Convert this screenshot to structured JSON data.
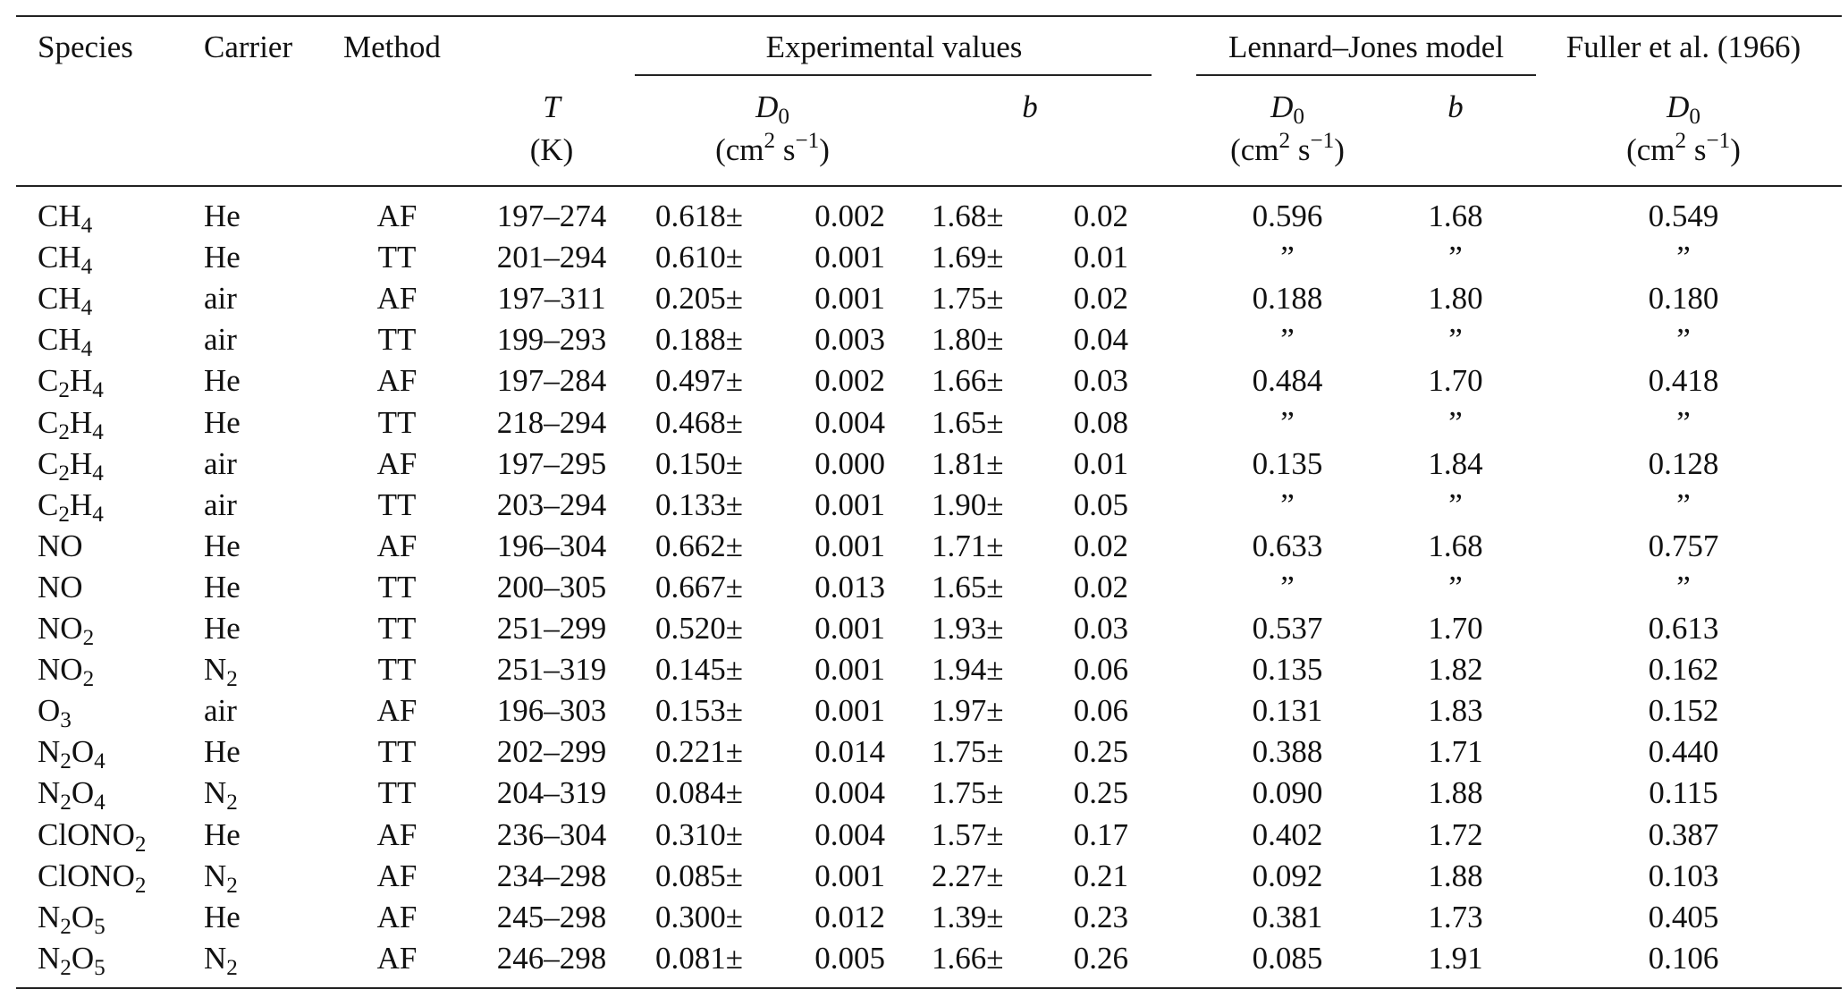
{
  "header": {
    "species": "Species",
    "carrier": "Carrier",
    "method": "Method",
    "experimental": "Experimental values",
    "lj_model": "Lennard–Jones model",
    "fuller": "Fuller et al. (1966)",
    "T": "T",
    "T_unit": "(K)",
    "D0_sym": "D",
    "D0_sub": "0",
    "b": "b",
    "unit_cm": "(cm",
    "unit_sq": "2",
    "unit_s": " s",
    "unit_exp": "−1",
    "unit_close": ")",
    "pm": "±"
  },
  "rows": [
    {
      "sp": "CH",
      "sps": "4",
      "sp2": "",
      "sp2s": "",
      "sp3": "",
      "sp3s": "",
      "car": "He",
      "cars": "",
      "method": "AF",
      "T": "197–274",
      "D0": "0.618",
      "D0e": "0.002",
      "b": "1.68",
      "be": "0.02",
      "ljD": "0.596",
      "ljb": "1.68",
      "fu": "0.549"
    },
    {
      "sp": "CH",
      "sps": "4",
      "sp2": "",
      "sp2s": "",
      "sp3": "",
      "sp3s": "",
      "car": "He",
      "cars": "",
      "method": "TT",
      "T": "201–294",
      "D0": "0.610",
      "D0e": "0.001",
      "b": "1.69",
      "be": "0.01",
      "ljD": "”",
      "ljb": "”",
      "fu": "”"
    },
    {
      "sp": "CH",
      "sps": "4",
      "sp2": "",
      "sp2s": "",
      "sp3": "",
      "sp3s": "",
      "car": "air",
      "cars": "",
      "method": "AF",
      "T": "197–311",
      "D0": "0.205",
      "D0e": "0.001",
      "b": "1.75",
      "be": "0.02",
      "ljD": "0.188",
      "ljb": "1.80",
      "fu": "0.180"
    },
    {
      "sp": "CH",
      "sps": "4",
      "sp2": "",
      "sp2s": "",
      "sp3": "",
      "sp3s": "",
      "car": "air",
      "cars": "",
      "method": "TT",
      "T": "199–293",
      "D0": "0.188",
      "D0e": "0.003",
      "b": "1.80",
      "be": "0.04",
      "ljD": "”",
      "ljb": "”",
      "fu": "”"
    },
    {
      "sp": "C",
      "sps": "2",
      "sp2": "H",
      "sp2s": "4",
      "sp3": "",
      "sp3s": "",
      "car": "He",
      "cars": "",
      "method": "AF",
      "T": "197–284",
      "D0": "0.497",
      "D0e": "0.002",
      "b": "1.66",
      "be": "0.03",
      "ljD": "0.484",
      "ljb": "1.70",
      "fu": "0.418"
    },
    {
      "sp": "C",
      "sps": "2",
      "sp2": "H",
      "sp2s": "4",
      "sp3": "",
      "sp3s": "",
      "car": "He",
      "cars": "",
      "method": "TT",
      "T": "218–294",
      "D0": "0.468",
      "D0e": "0.004",
      "b": "1.65",
      "be": "0.08",
      "ljD": "”",
      "ljb": "”",
      "fu": "”"
    },
    {
      "sp": "C",
      "sps": "2",
      "sp2": "H",
      "sp2s": "4",
      "sp3": "",
      "sp3s": "",
      "car": "air",
      "cars": "",
      "method": "AF",
      "T": "197–295",
      "D0": "0.150",
      "D0e": "0.000",
      "b": "1.81",
      "be": "0.01",
      "ljD": "0.135",
      "ljb": "1.84",
      "fu": "0.128"
    },
    {
      "sp": "C",
      "sps": "2",
      "sp2": "H",
      "sp2s": "4",
      "sp3": "",
      "sp3s": "",
      "car": "air",
      "cars": "",
      "method": "TT",
      "T": "203–294",
      "D0": "0.133",
      "D0e": "0.001",
      "b": "1.90",
      "be": "0.05",
      "ljD": "”",
      "ljb": "”",
      "fu": "”"
    },
    {
      "sp": "NO",
      "sps": "",
      "sp2": "",
      "sp2s": "",
      "sp3": "",
      "sp3s": "",
      "car": "He",
      "cars": "",
      "method": "AF",
      "T": "196–304",
      "D0": "0.662",
      "D0e": "0.001",
      "b": "1.71",
      "be": "0.02",
      "ljD": "0.633",
      "ljb": "1.68",
      "fu": "0.757"
    },
    {
      "sp": "NO",
      "sps": "",
      "sp2": "",
      "sp2s": "",
      "sp3": "",
      "sp3s": "",
      "car": "He",
      "cars": "",
      "method": "TT",
      "T": "200–305",
      "D0": "0.667",
      "D0e": "0.013",
      "b": "1.65",
      "be": "0.02",
      "ljD": "”",
      "ljb": "”",
      "fu": "”"
    },
    {
      "sp": "NO",
      "sps": "2",
      "sp2": "",
      "sp2s": "",
      "sp3": "",
      "sp3s": "",
      "car": "He",
      "cars": "",
      "method": "TT",
      "T": "251–299",
      "D0": "0.520",
      "D0e": "0.001",
      "b": "1.93",
      "be": "0.03",
      "ljD": "0.537",
      "ljb": "1.70",
      "fu": "0.613"
    },
    {
      "sp": "NO",
      "sps": "2",
      "sp2": "",
      "sp2s": "",
      "sp3": "",
      "sp3s": "",
      "car": "N",
      "cars": "2",
      "method": "TT",
      "T": "251–319",
      "D0": "0.145",
      "D0e": "0.001",
      "b": "1.94",
      "be": "0.06",
      "ljD": "0.135",
      "ljb": "1.82",
      "fu": "0.162"
    },
    {
      "sp": "O",
      "sps": "3",
      "sp2": "",
      "sp2s": "",
      "sp3": "",
      "sp3s": "",
      "car": "air",
      "cars": "",
      "method": "AF",
      "T": "196–303",
      "D0": "0.153",
      "D0e": "0.001",
      "b": "1.97",
      "be": "0.06",
      "ljD": "0.131",
      "ljb": "1.83",
      "fu": "0.152"
    },
    {
      "sp": "N",
      "sps": "2",
      "sp2": "O",
      "sp2s": "4",
      "sp3": "",
      "sp3s": "",
      "car": "He",
      "cars": "",
      "method": "TT",
      "T": "202–299",
      "D0": "0.221",
      "D0e": "0.014",
      "b": "1.75",
      "be": "0.25",
      "ljD": "0.388",
      "ljb": "1.71",
      "fu": "0.440"
    },
    {
      "sp": "N",
      "sps": "2",
      "sp2": "O",
      "sp2s": "4",
      "sp3": "",
      "sp3s": "",
      "car": "N",
      "cars": "2",
      "method": "TT",
      "T": "204–319",
      "D0": "0.084",
      "D0e": "0.004",
      "b": "1.75",
      "be": "0.25",
      "ljD": "0.090",
      "ljb": "1.88",
      "fu": "0.115"
    },
    {
      "sp": "ClONO",
      "sps": "2",
      "sp2": "",
      "sp2s": "",
      "sp3": "",
      "sp3s": "",
      "car": "He",
      "cars": "",
      "method": "AF",
      "T": "236–304",
      "D0": "0.310",
      "D0e": "0.004",
      "b": "1.57",
      "be": "0.17",
      "ljD": "0.402",
      "ljb": "1.72",
      "fu": "0.387"
    },
    {
      "sp": "ClONO",
      "sps": "2",
      "sp2": "",
      "sp2s": "",
      "sp3": "",
      "sp3s": "",
      "car": "N",
      "cars": "2",
      "method": "AF",
      "T": "234–298",
      "D0": "0.085",
      "D0e": "0.001",
      "b": "2.27",
      "be": "0.21",
      "ljD": "0.092",
      "ljb": "1.88",
      "fu": "0.103"
    },
    {
      "sp": "N",
      "sps": "2",
      "sp2": "O",
      "sp2s": "5",
      "sp3": "",
      "sp3s": "",
      "car": "He",
      "cars": "",
      "method": "AF",
      "T": "245–298",
      "D0": "0.300",
      "D0e": "0.012",
      "b": "1.39",
      "be": "0.23",
      "ljD": "0.381",
      "ljb": "1.73",
      "fu": "0.405"
    },
    {
      "sp": "N",
      "sps": "2",
      "sp2": "O",
      "sp2s": "5",
      "sp3": "",
      "sp3s": "",
      "car": "N",
      "cars": "2",
      "method": "AF",
      "T": "246–298",
      "D0": "0.081",
      "D0e": "0.005",
      "b": "1.66",
      "be": "0.26",
      "ljD": "0.085",
      "ljb": "1.91",
      "fu": "0.106"
    }
  ]
}
